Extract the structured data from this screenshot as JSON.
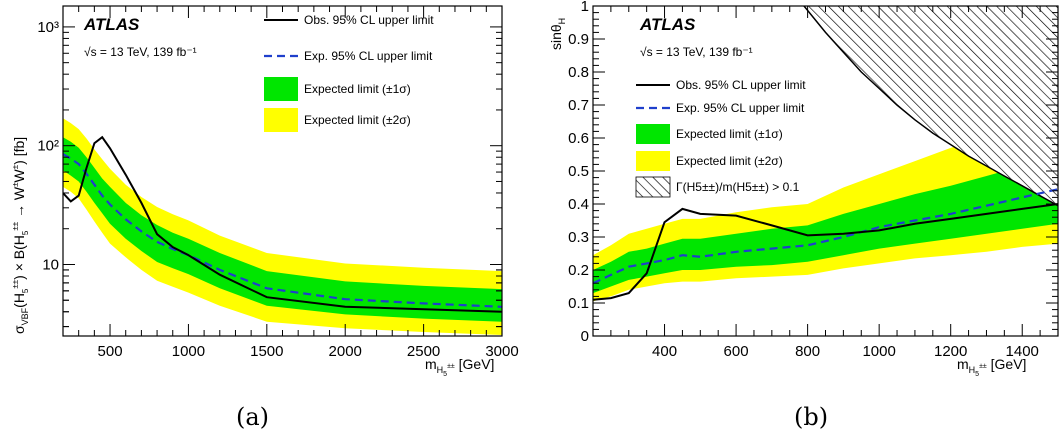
{
  "figure": {
    "captions": [
      "(a)",
      "(b)"
    ]
  },
  "chart_data": [
    {
      "type": "line",
      "experiment": "ATLAS",
      "energy_lumi": "√s = 13 TeV, 139 fb⁻¹",
      "xlabel": "m_H5±± [GeV]",
      "ylabel": "σ_VBF(H5±±) × B(H5±± → W±W±) [fb]",
      "xlim": [
        200,
        3000
      ],
      "ylim": [
        2.5,
        1500
      ],
      "yscale": "log",
      "x_ticks": [
        500,
        1000,
        1500,
        2000,
        2500,
        3000
      ],
      "y_ticks": [
        {
          "v": 10,
          "label": "10"
        },
        {
          "v": 100,
          "label": "10²"
        },
        {
          "v": 1000,
          "label": "10³"
        }
      ],
      "legend_position": "top-right",
      "legend": [
        {
          "label": "Obs. 95% CL upper limit",
          "style": "solid",
          "color": "#000000"
        },
        {
          "label": "Exp. 95% CL upper limit",
          "style": "dashed",
          "color": "#1f3fcc"
        },
        {
          "label": "Expected limit (±1σ)",
          "style": "box",
          "color": "#00e600"
        },
        {
          "label": "Expected limit (±2σ)",
          "style": "box",
          "color": "#ffff00"
        }
      ],
      "x": [
        200,
        250,
        300,
        350,
        400,
        450,
        500,
        600,
        700,
        800,
        900,
        1000,
        1200,
        1500,
        2000,
        2500,
        3000
      ],
      "observed": [
        40,
        34,
        38,
        65,
        105,
        118,
        95,
        57,
        33,
        18,
        14,
        12,
        8.2,
        5.3,
        4.4,
        4.2,
        4.0
      ],
      "expected": [
        85,
        78,
        70,
        58,
        47,
        38,
        32,
        24,
        19,
        15.5,
        13.5,
        12,
        9,
        6.3,
        5.1,
        4.7,
        4.4
      ],
      "band1_low": [
        62,
        56,
        50,
        41,
        33,
        27,
        22,
        16.5,
        13,
        10.5,
        9.3,
        8.3,
        6.3,
        4.5,
        3.8,
        3.5,
        3.3
      ],
      "band1_high": [
        118,
        108,
        96,
        80,
        65,
        53,
        45,
        33,
        26,
        21.5,
        18.5,
        16.5,
        12.5,
        8.8,
        7.2,
        6.6,
        6.2
      ],
      "band2_low": [
        45,
        41,
        36,
        29,
        23,
        18.5,
        15,
        11.5,
        9,
        7.3,
        6.5,
        5.8,
        4.5,
        3.3,
        2.9,
        2.7,
        2.55
      ],
      "band2_high": [
        170,
        155,
        138,
        115,
        93,
        77,
        64,
        47,
        37,
        30.5,
        26.5,
        23.5,
        17.5,
        12.5,
        10.2,
        9.4,
        8.8
      ]
    },
    {
      "type": "line",
      "experiment": "ATLAS",
      "energy_lumi": "√s = 13 TeV, 139 fb⁻¹",
      "xlabel": "m_H5±± [GeV]",
      "ylabel": "sinθ_H",
      "xlim": [
        200,
        1500
      ],
      "ylim": [
        0,
        1
      ],
      "x_ticks": [
        400,
        600,
        800,
        1000,
        1200,
        1400
      ],
      "y_ticks": [
        0,
        0.1,
        0.2,
        0.3,
        0.4,
        0.5,
        0.6,
        0.7,
        0.8,
        0.9,
        1
      ],
      "legend_position": "top-left",
      "legend": [
        {
          "label": "Obs. 95% CL upper limit",
          "style": "solid",
          "color": "#000000"
        },
        {
          "label": "Exp. 95% CL upper limit",
          "style": "dashed",
          "color": "#1f3fcc"
        },
        {
          "label": "Expected limit (±1σ)",
          "style": "box",
          "color": "#00e600"
        },
        {
          "label": "Expected limit (±2σ)",
          "style": "box",
          "color": "#ffff00"
        },
        {
          "label": "Γ(H5±±)/m(H5±±) > 0.1",
          "style": "hatch",
          "color": "#000000"
        }
      ],
      "x": [
        200,
        250,
        300,
        350,
        400,
        450,
        500,
        600,
        700,
        800,
        900,
        1000,
        1100,
        1200,
        1300,
        1400,
        1500
      ],
      "observed": [
        0.11,
        0.115,
        0.13,
        0.19,
        0.345,
        0.385,
        0.37,
        0.365,
        0.335,
        0.305,
        0.31,
        0.32,
        0.34,
        0.355,
        0.37,
        0.385,
        0.4
      ],
      "expected": [
        0.16,
        0.185,
        0.21,
        0.22,
        0.23,
        0.245,
        0.24,
        0.255,
        0.265,
        0.275,
        0.3,
        0.33,
        0.35,
        0.37,
        0.395,
        0.42,
        0.445
      ],
      "band1_low": [
        0.13,
        0.15,
        0.17,
        0.18,
        0.19,
        0.2,
        0.2,
        0.21,
        0.215,
        0.225,
        0.245,
        0.265,
        0.28,
        0.295,
        0.31,
        0.325,
        0.34
      ],
      "band1_high": [
        0.2,
        0.225,
        0.255,
        0.265,
        0.28,
        0.295,
        0.295,
        0.31,
        0.325,
        0.335,
        0.37,
        0.4,
        0.43,
        0.455,
        0.485,
        0.515,
        0.545
      ],
      "band2_low": [
        0.105,
        0.12,
        0.14,
        0.15,
        0.16,
        0.165,
        0.165,
        0.175,
        0.18,
        0.185,
        0.205,
        0.22,
        0.235,
        0.245,
        0.255,
        0.27,
        0.28
      ],
      "band2_high": [
        0.245,
        0.275,
        0.31,
        0.325,
        0.34,
        0.355,
        0.355,
        0.375,
        0.39,
        0.4,
        0.45,
        0.49,
        0.53,
        0.57,
        0.605,
        0.64,
        0.67
      ],
      "hatch_boundary": {
        "x": [
          790,
          850,
          900,
          950,
          1000,
          1050,
          1100,
          1150,
          1200,
          1250,
          1300,
          1350,
          1400,
          1450,
          1500
        ],
        "y": [
          1.0,
          0.92,
          0.86,
          0.8,
          0.75,
          0.7,
          0.655,
          0.615,
          0.58,
          0.545,
          0.515,
          0.485,
          0.455,
          0.425,
          0.395
        ]
      }
    }
  ]
}
